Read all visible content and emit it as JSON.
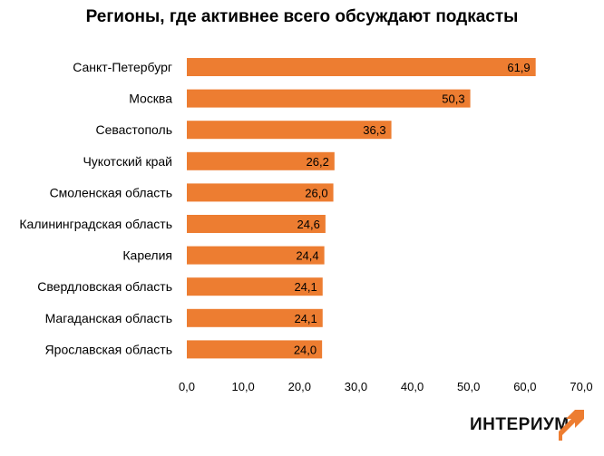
{
  "chart_data": {
    "type": "bar",
    "orientation": "horizontal",
    "title": "Регионы, где активнее всего обсуждают подкасты",
    "categories": [
      "Санкт-Петербург",
      "Москва",
      "Севастополь",
      "Чукотский край",
      "Смоленская область",
      "Калининградская область",
      "Карелия",
      "Свердловская область",
      "Магаданская область",
      "Ярославская область"
    ],
    "values": [
      61.9,
      50.3,
      36.3,
      26.2,
      26.0,
      24.6,
      24.4,
      24.1,
      24.1,
      24.0
    ],
    "value_labels": [
      "61,9",
      "50,3",
      "36,3",
      "26,2",
      "26,0",
      "24,6",
      "24,4",
      "24,1",
      "24,1",
      "24,0"
    ],
    "xlim": [
      0,
      70
    ],
    "x_ticks": [
      0,
      10,
      20,
      30,
      40,
      50,
      60,
      70
    ],
    "x_tick_labels": [
      "0,0",
      "10,0",
      "20,0",
      "30,0",
      "40,0",
      "50,0",
      "60,0",
      "70,0"
    ],
    "xlabel": "",
    "ylabel": "",
    "grid": false,
    "bar_color": "#ED7D31"
  },
  "brand": {
    "logo_text": "ИНТЕРИУМ",
    "logo_icon": "arrow-up-right-icon",
    "accent_color": "#ED7D31"
  }
}
